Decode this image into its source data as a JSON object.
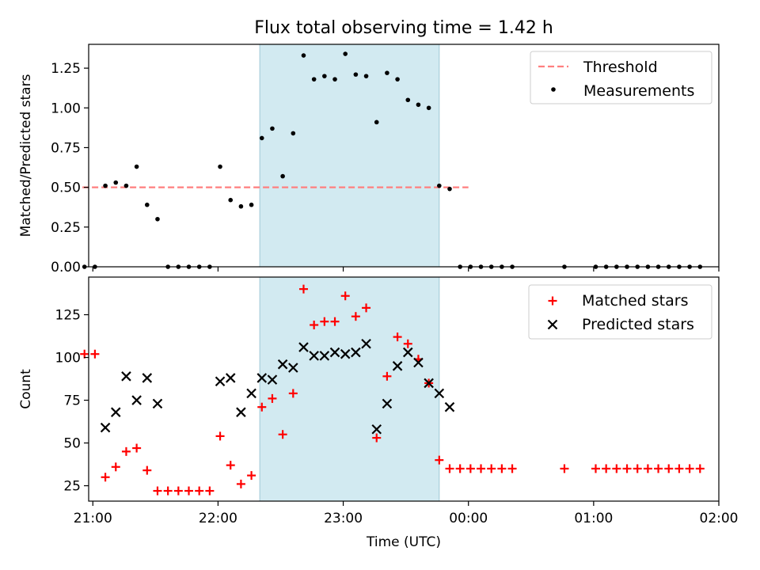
{
  "figure": {
    "title": "Flux total observing time = 1.42 h",
    "xlabel": "Time (UTC)",
    "x_ticks": [
      "21:00",
      "22:00",
      "23:00",
      "00:00",
      "01:00",
      "02:00"
    ],
    "colors": {
      "shade": "#add8e6",
      "threshold": "#ff7f7f",
      "matched": "#ff0000",
      "predicted": "#000000",
      "measurements": "#000000"
    }
  },
  "chart_data": [
    {
      "type": "scatter",
      "ylabel": "Matched/Predicted stars",
      "ylim": [
        0,
        1.4
      ],
      "y_ticks": [
        "0.00",
        "0.25",
        "0.50",
        "0.75",
        "1.00",
        "1.25"
      ],
      "xlim": [
        "20:58",
        "02:00"
      ],
      "shaded_interval": [
        "22:20",
        "23:46"
      ],
      "threshold": {
        "name": "Threshold",
        "value": 0.5,
        "x_range": [
          "20:55",
          "23:59:59"
        ]
      },
      "legend": {
        "position": "top-right",
        "entries": [
          "Threshold",
          "Measurements"
        ]
      },
      "series": [
        {
          "name": "Measurements",
          "points": [
            [
              "20:56",
              0.0
            ],
            [
              "21:01",
              0.0
            ],
            [
              "21:06",
              0.51
            ],
            [
              "21:11",
              0.53
            ],
            [
              "21:16",
              0.51
            ],
            [
              "21:21",
              0.63
            ],
            [
              "21:26",
              0.39
            ],
            [
              "21:31",
              0.3
            ],
            [
              "21:36",
              0.0
            ],
            [
              "21:41",
              0.0
            ],
            [
              "21:46",
              0.0
            ],
            [
              "21:51",
              0.0
            ],
            [
              "21:56",
              0.0
            ],
            [
              "22:01",
              0.63
            ],
            [
              "22:06",
              0.42
            ],
            [
              "22:11",
              0.38
            ],
            [
              "22:16",
              0.39
            ],
            [
              "22:21",
              0.81
            ],
            [
              "22:26",
              0.87
            ],
            [
              "22:31",
              0.57
            ],
            [
              "22:36",
              0.84
            ],
            [
              "22:41",
              1.33
            ],
            [
              "22:46",
              1.18
            ],
            [
              "22:51",
              1.2
            ],
            [
              "22:56",
              1.18
            ],
            [
              "23:01",
              1.34
            ],
            [
              "23:06",
              1.21
            ],
            [
              "23:11",
              1.2
            ],
            [
              "23:16",
              0.91
            ],
            [
              "23:21",
              1.22
            ],
            [
              "23:26",
              1.18
            ],
            [
              "23:31",
              1.05
            ],
            [
              "23:36",
              1.02
            ],
            [
              "23:41",
              1.0
            ],
            [
              "23:46",
              0.51
            ],
            [
              "23:51",
              0.49
            ],
            [
              "23:56",
              0.0
            ],
            [
              "00:01",
              0.0
            ],
            [
              "00:06",
              0.0
            ],
            [
              "00:11",
              0.0
            ],
            [
              "00:16",
              0.0
            ],
            [
              "00:21",
              0.0
            ],
            [
              "00:46",
              0.0
            ],
            [
              "01:01",
              0.0
            ],
            [
              "01:06",
              0.0
            ],
            [
              "01:11",
              0.0
            ],
            [
              "01:16",
              0.0
            ],
            [
              "01:21",
              0.0
            ],
            [
              "01:26",
              0.0
            ],
            [
              "01:31",
              0.0
            ],
            [
              "01:36",
              0.0
            ],
            [
              "01:41",
              0.0
            ],
            [
              "01:46",
              0.0
            ],
            [
              "01:51",
              0.0
            ]
          ]
        }
      ]
    },
    {
      "type": "scatter",
      "ylabel": "Count",
      "ylim": [
        16,
        147
      ],
      "y_ticks": [
        "25",
        "50",
        "75",
        "100",
        "125"
      ],
      "xlim": [
        "20:58",
        "02:00"
      ],
      "shaded_interval": [
        "22:20",
        "23:46"
      ],
      "legend": {
        "position": "top-right",
        "entries": [
          "Matched stars",
          "Predicted stars"
        ]
      },
      "series": [
        {
          "name": "Matched stars",
          "marker": "plus",
          "points": [
            [
              "20:56",
              102
            ],
            [
              "21:01",
              102
            ],
            [
              "21:06",
              30
            ],
            [
              "21:11",
              36
            ],
            [
              "21:16",
              45
            ],
            [
              "21:21",
              47
            ],
            [
              "21:26",
              34
            ],
            [
              "21:31",
              22
            ],
            [
              "21:36",
              22
            ],
            [
              "21:41",
              22
            ],
            [
              "21:46",
              22
            ],
            [
              "21:51",
              22
            ],
            [
              "21:56",
              22
            ],
            [
              "22:01",
              54
            ],
            [
              "22:06",
              37
            ],
            [
              "22:11",
              26
            ],
            [
              "22:16",
              31
            ],
            [
              "22:21",
              71
            ],
            [
              "22:26",
              76
            ],
            [
              "22:31",
              55
            ],
            [
              "22:36",
              79
            ],
            [
              "22:41",
              140
            ],
            [
              "22:46",
              119
            ],
            [
              "22:51",
              121
            ],
            [
              "22:56",
              121
            ],
            [
              "23:01",
              136
            ],
            [
              "23:06",
              124
            ],
            [
              "23:11",
              129
            ],
            [
              "23:16",
              53
            ],
            [
              "23:21",
              89
            ],
            [
              "23:26",
              112
            ],
            [
              "23:31",
              108
            ],
            [
              "23:36",
              99
            ],
            [
              "23:41",
              85
            ],
            [
              "23:46",
              40
            ],
            [
              "23:51",
              35
            ],
            [
              "23:56",
              35
            ],
            [
              "00:01",
              35
            ],
            [
              "00:06",
              35
            ],
            [
              "00:11",
              35
            ],
            [
              "00:16",
              35
            ],
            [
              "00:21",
              35
            ],
            [
              "00:46",
              35
            ],
            [
              "01:01",
              35
            ],
            [
              "01:06",
              35
            ],
            [
              "01:11",
              35
            ],
            [
              "01:16",
              35
            ],
            [
              "01:21",
              35
            ],
            [
              "01:26",
              35
            ],
            [
              "01:31",
              35
            ],
            [
              "01:36",
              35
            ],
            [
              "01:41",
              35
            ],
            [
              "01:46",
              35
            ],
            [
              "01:51",
              35
            ]
          ]
        },
        {
          "name": "Predicted stars",
          "marker": "x",
          "points": [
            [
              "21:06",
              59
            ],
            [
              "21:11",
              68
            ],
            [
              "21:16",
              89
            ],
            [
              "21:21",
              75
            ],
            [
              "21:26",
              88
            ],
            [
              "21:31",
              73
            ],
            [
              "22:01",
              86
            ],
            [
              "22:06",
              88
            ],
            [
              "22:11",
              68
            ],
            [
              "22:16",
              79
            ],
            [
              "22:21",
              88
            ],
            [
              "22:26",
              87
            ],
            [
              "22:31",
              96
            ],
            [
              "22:36",
              94
            ],
            [
              "22:41",
              106
            ],
            [
              "22:46",
              101
            ],
            [
              "22:51",
              101
            ],
            [
              "22:56",
              103
            ],
            [
              "23:01",
              102
            ],
            [
              "23:06",
              103
            ],
            [
              "23:11",
              108
            ],
            [
              "23:16",
              58
            ],
            [
              "23:21",
              73
            ],
            [
              "23:26",
              95
            ],
            [
              "23:31",
              103
            ],
            [
              "23:36",
              97
            ],
            [
              "23:41",
              85
            ],
            [
              "23:46",
              79
            ],
            [
              "23:51",
              71
            ]
          ]
        }
      ]
    }
  ]
}
